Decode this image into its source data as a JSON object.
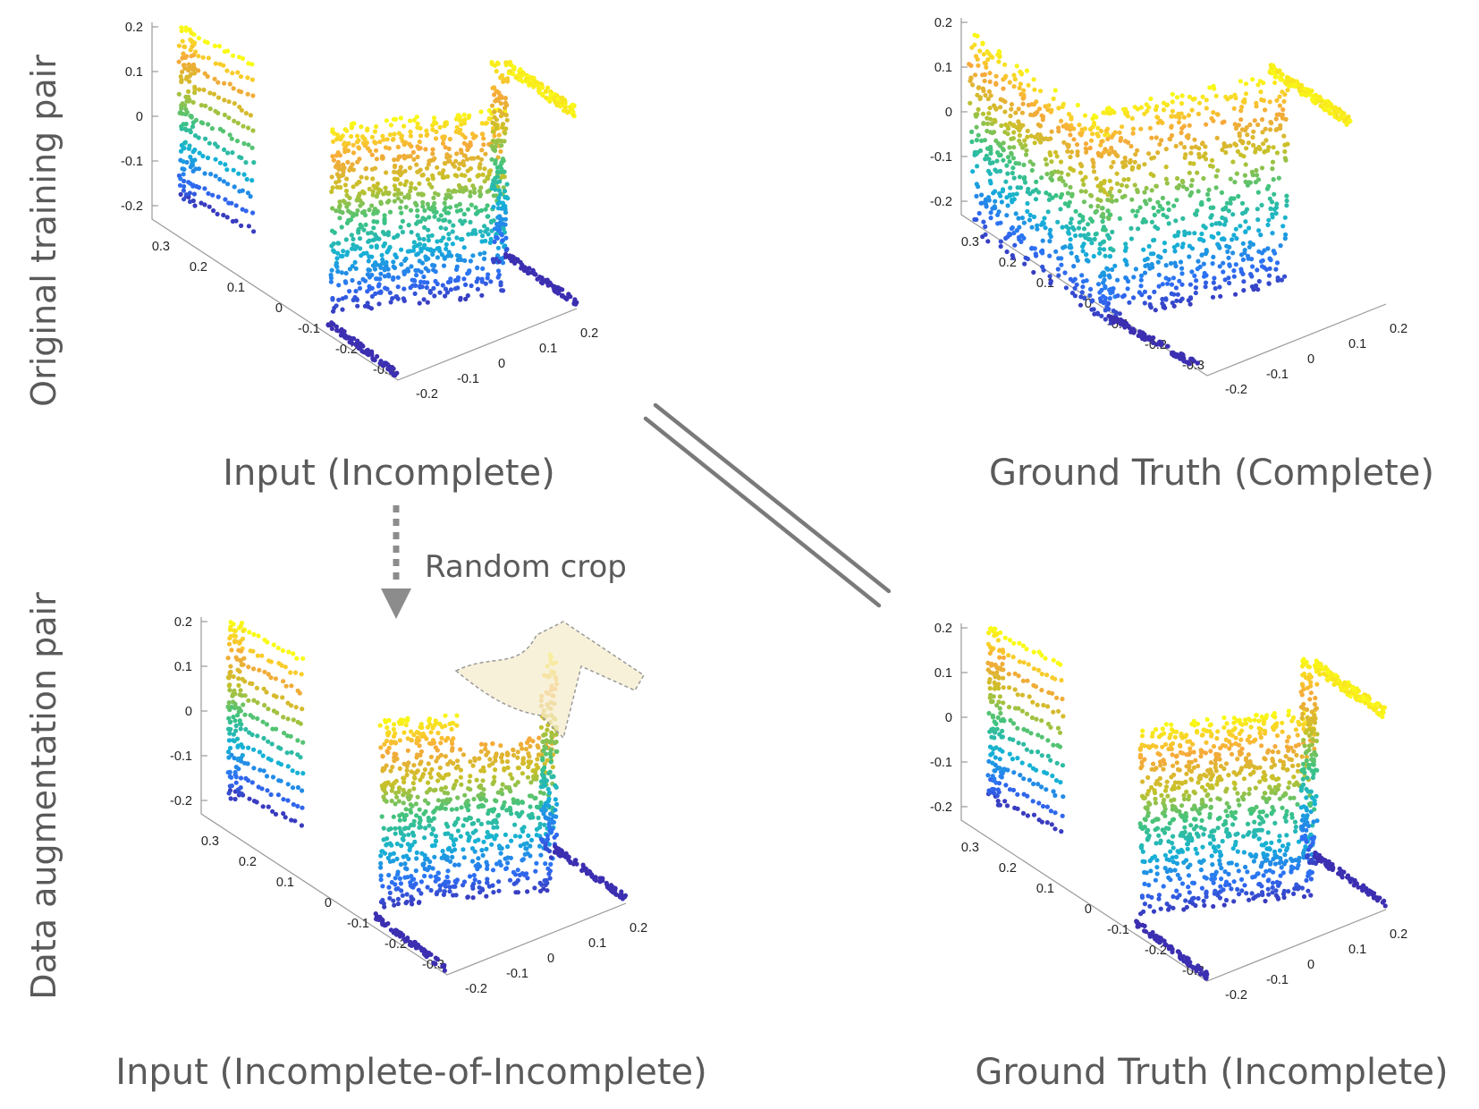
{
  "row_labels": {
    "top": "Original training pair",
    "bottom": "Data augmentation pair"
  },
  "captions": {
    "top_left": "Input (Incomplete)",
    "top_right": "Ground Truth (Complete)",
    "bottom_left": "Input (Incomplete-of-Incomplete)",
    "bottom_right": "Ground Truth (Incomplete)"
  },
  "arrow_label": "Random crop",
  "axes": {
    "z_ticks": [
      "0.2",
      "0.1",
      "0",
      "-0.1",
      "-0.2"
    ],
    "depth_ticks": [
      "0.3",
      "0.2",
      "0.1",
      "0",
      "-0.1",
      "-0.2",
      "-0.3"
    ],
    "width_ticks": [
      "-0.2",
      "-0.1",
      "0",
      "0.1",
      "0.2"
    ]
  },
  "colors": {
    "text": "#5a5a5a",
    "axis": "#9a9a9a",
    "colormap": [
      "#3e26a8",
      "#2d6ff5",
      "#15b1d6",
      "#3fc37f",
      "#c8c129",
      "#f7a93b",
      "#f9fb15"
    ],
    "crop_region": "#f5eccd",
    "connector": "#7a7a7a",
    "arrow": "#8c8c8c"
  },
  "panels": [
    {
      "id": "top-left",
      "variant": "incomplete"
    },
    {
      "id": "top-right",
      "variant": "complete"
    },
    {
      "id": "bottom-left",
      "variant": "cropped"
    },
    {
      "id": "bottom-right",
      "variant": "incomplete"
    }
  ]
}
